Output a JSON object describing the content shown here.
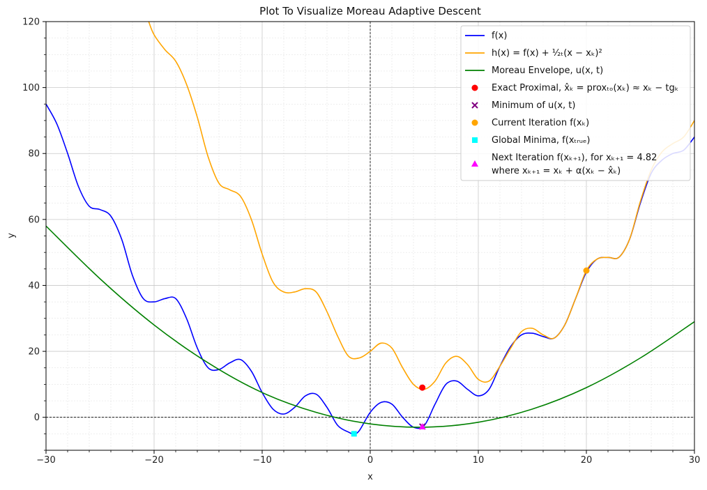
{
  "chart_data": {
    "type": "line",
    "title": "Plot To Visualize Moreau Adaptive Descent",
    "xlabel": "x",
    "ylabel": "y",
    "xlim": [
      -30,
      30
    ],
    "ylim": [
      -10,
      120
    ],
    "xticks": [
      -30,
      -20,
      -10,
      0,
      10,
      20,
      30
    ],
    "xtick_labels": [
      "−30",
      "−20",
      "−10",
      "0",
      "10",
      "20",
      "30"
    ],
    "yticks": [
      0,
      20,
      40,
      60,
      80,
      100,
      120
    ],
    "ytick_labels": [
      "0",
      "20",
      "40",
      "60",
      "80",
      "100",
      "120"
    ],
    "grid": true,
    "minor_grid": true,
    "legend_position": "top-right",
    "zero_lines": true,
    "series": [
      {
        "name": "f(x)",
        "color": "#0000ff",
        "x": [
          -30,
          -29,
          -28,
          -27,
          -26,
          -25,
          -24,
          -23,
          -22,
          -21,
          -20,
          -19,
          -18,
          -17,
          -16,
          -15,
          -14,
          -13,
          -12,
          -11,
          -10,
          -9,
          -8,
          -7,
          -6,
          -5,
          -4,
          -3,
          -2,
          -1.5,
          -1,
          0,
          1,
          2,
          3,
          4,
          5,
          6,
          7,
          8,
          9,
          10,
          11,
          12,
          13,
          14,
          15,
          16,
          17,
          18,
          19,
          20,
          21,
          22,
          23,
          24,
          25,
          26,
          27,
          28,
          29,
          30
        ],
        "y": [
          95,
          89,
          80,
          70,
          64,
          63,
          61,
          54,
          43,
          36,
          35,
          36,
          36,
          30,
          21,
          15,
          14.5,
          16.5,
          17.5,
          14,
          7.5,
          2.5,
          1,
          3,
          6.5,
          7,
          3,
          -2.5,
          -4.5,
          -5,
          -4,
          1.5,
          4.5,
          4,
          0,
          -3,
          -2.5,
          4,
          10,
          11,
          8.5,
          6.5,
          8.5,
          15.5,
          21.5,
          25,
          25.5,
          24.5,
          24,
          28,
          36,
          44,
          48,
          48.5,
          48.5,
          54,
          65,
          74,
          78,
          80,
          81,
          85
        ]
      },
      {
        "name": "h(x) = f(x) + (1/2t)(x − x_k)^2",
        "color": "#ffa500",
        "x": [
          -20.5,
          -20,
          -19,
          -18,
          -17,
          -16,
          -15,
          -14,
          -13,
          -12,
          -11,
          -10,
          -9,
          -8,
          -7,
          -6,
          -5,
          -4,
          -3,
          -2,
          -1,
          0,
          1,
          2,
          3,
          4,
          5,
          6,
          7,
          8,
          9,
          10,
          11,
          12,
          13,
          14,
          15,
          16,
          17,
          18,
          19,
          20,
          21,
          22,
          23,
          24,
          25,
          26,
          27,
          28,
          29,
          30
        ],
        "y": [
          120,
          116,
          111.5,
          108,
          101,
          91,
          79,
          71,
          69,
          67,
          60,
          49.5,
          41,
          38,
          38,
          39,
          38,
          32,
          24.5,
          18.5,
          18,
          20,
          22.5,
          21,
          15,
          10,
          8.5,
          11,
          16.5,
          18.5,
          16,
          11.5,
          11,
          15.5,
          21,
          26,
          27,
          25,
          24,
          28,
          36,
          44.5,
          48,
          48.5,
          48.5,
          54,
          65.5,
          75,
          80.5,
          83,
          85,
          90
        ]
      },
      {
        "name": "Moreau Envelope, u(x,t)",
        "color": "#008000",
        "x": [
          -30,
          -25,
          -20,
          -15,
          -10,
          -5,
          0,
          5,
          10,
          15,
          20,
          25,
          30
        ],
        "y": [
          58,
          42,
          28,
          16.5,
          7.5,
          1.5,
          -2,
          -3,
          -1.5,
          2.5,
          9,
          18,
          29
        ]
      }
    ],
    "points": [
      {
        "name": "Exact Proximal",
        "x": 4.82,
        "y": 9,
        "color": "#ff0000",
        "marker": "circle"
      },
      {
        "name": "Minimum of u(x,t)",
        "x": 4.82,
        "y": -2.8,
        "color": "#800080",
        "marker": "x"
      },
      {
        "name": "Current Iteration f(x_k)",
        "x": 20,
        "y": 44.5,
        "color": "#ffa500",
        "marker": "circle"
      },
      {
        "name": "Global Minima",
        "x": -1.5,
        "y": -5,
        "color": "#00ffff",
        "marker": "square"
      },
      {
        "name": "Next Iteration",
        "x": 4.82,
        "y": -2.8,
        "color": "#ff00ff",
        "marker": "triangle"
      }
    ],
    "legend": [
      {
        "kind": "line",
        "color": "#0000ff",
        "main": "f(x)",
        "sub1": "",
        "sub2": ""
      },
      {
        "kind": "line",
        "color": "#ffa500",
        "main": "h(x) = f(x) + ¹⁄₂ₜ(x − xₖ)²",
        "sub1": "",
        "sub2": ""
      },
      {
        "kind": "line",
        "color": "#008000",
        "main": "Moreau Envelope, u(x, t)",
        "sub1": "",
        "sub2": ""
      },
      {
        "kind": "circle",
        "color": "#ff0000",
        "main": "Exact Proximal, x̂ₖ = proxₜₒ(xₖ) ≈ xₖ − tgₖ",
        "sub1": "",
        "sub2": ""
      },
      {
        "kind": "x",
        "color": "#800080",
        "main": "Minimum of u(x, t)",
        "sub1": "",
        "sub2": ""
      },
      {
        "kind": "circle",
        "color": "#ffa500",
        "main": "Current Iteration f(xₖ)",
        "sub1": "",
        "sub2": ""
      },
      {
        "kind": "square",
        "color": "#00ffff",
        "main": "Global Minima, f(xₜᵣᵤₑ)",
        "sub1": "",
        "sub2": ""
      },
      {
        "kind": "triangle",
        "color": "#ff00ff",
        "main": "Next Iteration f(xₖ₊₁), for xₖ₊₁ = 4.82",
        "sub1": "where xₖ₊₁ = xₖ + α(xₖ − x̂ₖ)",
        "sub2": ""
      }
    ]
  }
}
